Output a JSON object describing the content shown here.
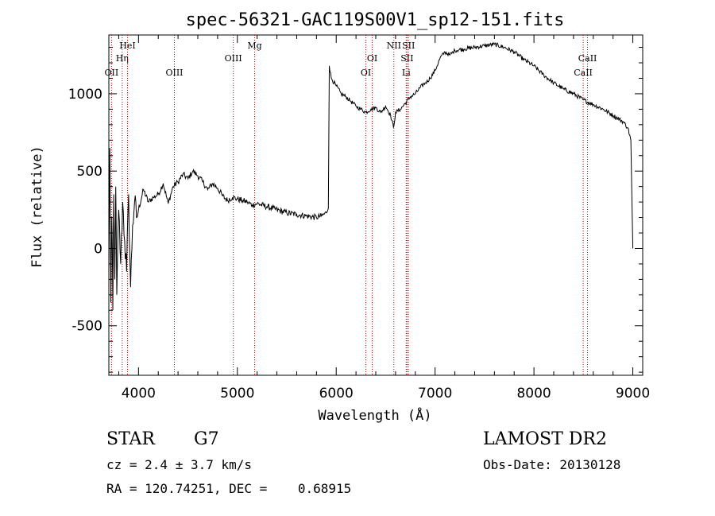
{
  "chart_data": {
    "type": "line",
    "title": "spec-56321-GAC119S00V1_sp12-151.fits",
    "xlabel": "Wavelength (Å)",
    "ylabel": "Flux (relative)",
    "xlim": [
      3700,
      9100
    ],
    "ylim": [
      -820,
      1380
    ],
    "x_ticks": [
      4000,
      5000,
      6000,
      7000,
      8000,
      9000
    ],
    "y_ticks": [
      -500,
      0,
      500,
      1000
    ],
    "grid": false,
    "series": [
      {
        "x": [
          3700,
          3710,
          3720,
          3730,
          3740,
          3750,
          3760,
          3770,
          3780,
          3800,
          3820,
          3840,
          3860,
          3880,
          3900,
          3920,
          3940,
          3960,
          3980,
          4000,
          4050,
          4100,
          4150,
          4200,
          4250,
          4300,
          4350,
          4400,
          4450,
          4500,
          4550,
          4600,
          4650,
          4700,
          4750,
          4800,
          4850,
          4900,
          4950,
          5000,
          5050,
          5100,
          5150,
          5200,
          5300,
          5400,
          5500,
          5600,
          5700,
          5800,
          5850,
          5900,
          5920,
          5930,
          5950,
          6000,
          6050,
          6100,
          6150,
          6200,
          6250,
          6300,
          6350,
          6400,
          6450,
          6500,
          6550,
          6580,
          6600,
          6650,
          6700,
          6750,
          6800,
          6850,
          6900,
          6950,
          7000,
          7050,
          7100,
          7150,
          7200,
          7300,
          7400,
          7500,
          7600,
          7700,
          7800,
          7900,
          8000,
          8100,
          8200,
          8300,
          8400,
          8500,
          8600,
          8700,
          8800,
          8900,
          8950,
          8980,
          9000
        ],
        "values": [
          -150,
          650,
          -350,
          200,
          -400,
          350,
          -200,
          400,
          -300,
          250,
          -100,
          300,
          50,
          -150,
          350,
          -250,
          150,
          300,
          200,
          250,
          380,
          300,
          330,
          350,
          420,
          290,
          400,
          430,
          480,
          450,
          500,
          470,
          430,
          380,
          420,
          390,
          340,
          310,
          330,
          320,
          310,
          300,
          280,
          290,
          270,
          250,
          230,
          220,
          210,
          200,
          210,
          230,
          260,
          1180,
          1100,
          1050,
          1000,
          980,
          950,
          920,
          900,
          880,
          900,
          910,
          880,
          920,
          860,
          780,
          880,
          900,
          940,
          980,
          1000,
          1040,
          1070,
          1100,
          1150,
          1230,
          1270,
          1250,
          1280,
          1290,
          1300,
          1310,
          1320,
          1300,
          1270,
          1220,
          1180,
          1120,
          1070,
          1030,
          1000,
          960,
          930,
          900,
          860,
          820,
          780,
          700,
          0
        ]
      }
    ],
    "lines": [
      {
        "label": "OII",
        "x": 3727,
        "row": 3
      },
      {
        "label": "Hη",
        "x": 3835,
        "row": 2
      },
      {
        "label": "HeI",
        "x": 3889,
        "row": 1
      },
      {
        "label": "OIII",
        "x": 4363,
        "row": 3
      },
      {
        "label": "OIII",
        "x": 4959,
        "row": 2
      },
      {
        "label": "Mg",
        "x": 5175,
        "row": 1
      },
      {
        "label": "OI",
        "x": 6300,
        "row": 3
      },
      {
        "label": "OI",
        "x": 6364,
        "row": 2
      },
      {
        "label": "NII",
        "x": 6583,
        "row": 1
      },
      {
        "label": "Li",
        "x": 6708,
        "row": 3
      },
      {
        "label": "SII",
        "x": 6716,
        "row": 2
      },
      {
        "label": "SII",
        "x": 6731,
        "row": 1
      },
      {
        "label": "CaII",
        "x": 8498,
        "row": 3
      },
      {
        "label": "CaII",
        "x": 8542,
        "row": 2
      }
    ]
  },
  "footer": {
    "class": "STAR",
    "subclass": "G7",
    "cz": "cz = 2.4 ± 3.7 km/s",
    "coords": "RA = 120.74251, DEC =    0.68915",
    "survey": "LAMOST DR2",
    "obs_date": "Obs-Date: 20130128"
  }
}
